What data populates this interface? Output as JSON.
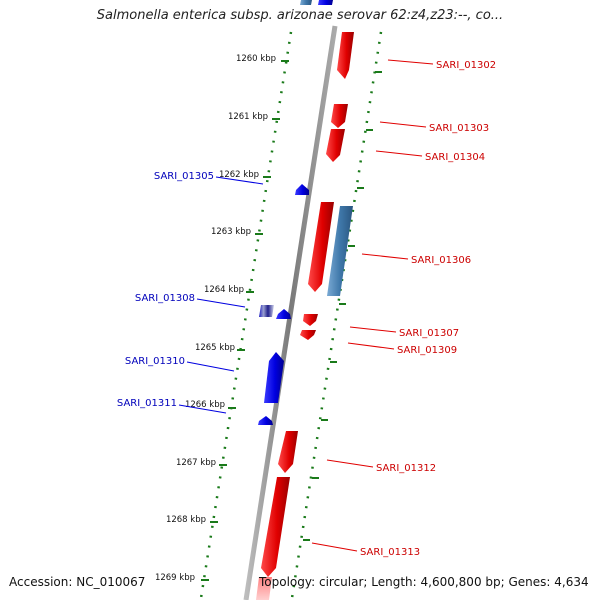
{
  "title": "Salmonella enterica subsp. arizonae serovar 62:z4,z23:--, co...",
  "footer": {
    "accession": "Accession: NC_010067",
    "topology": "Topology: circular; Length: 4,600,800 bp; Genes: 4,634"
  },
  "ruler_ticks": [
    "1260 kbp",
    "1261 kbp",
    "1262 kbp",
    "1263 kbp",
    "1264 kbp",
    "1265 kbp",
    "1266 kbp",
    "1267 kbp",
    "1268 kbp",
    "1269 kbp"
  ],
  "gene_labels": {
    "forward": [
      "SARI_01302",
      "SARI_01303",
      "SARI_01304",
      "SARI_01306",
      "SARI_01307",
      "SARI_01309",
      "SARI_01312",
      "SARI_01313"
    ],
    "reverse": [
      "SARI_01305",
      "SARI_01308",
      "SARI_01310",
      "SARI_01311"
    ]
  },
  "colors": {
    "forward_gene": "#e00000",
    "reverse_gene": "#0000e0",
    "other_feature": "#4a7fb0",
    "forward_label": "#cc0000",
    "reverse_label": "#0000bb",
    "ruler": "#1a7a1a",
    "backbone": "#8a8a8a"
  }
}
